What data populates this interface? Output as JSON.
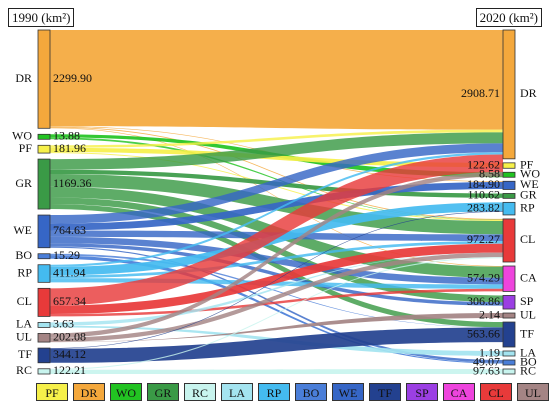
{
  "years": {
    "left": "1990 (km²)",
    "right": "2020 (km²)"
  },
  "legend": [
    {
      "code": "PF",
      "color": "#f6f04a"
    },
    {
      "code": "DR",
      "color": "#f4a83c"
    },
    {
      "code": "WO",
      "color": "#22c322"
    },
    {
      "code": "GR",
      "color": "#3a9a46"
    },
    {
      "code": "RC",
      "color": "#c8f4ee"
    },
    {
      "code": "LA",
      "color": "#a4e4f0"
    },
    {
      "code": "RP",
      "color": "#44bbf0"
    },
    {
      "code": "BO",
      "color": "#4a7ed8"
    },
    {
      "code": "WE",
      "color": "#3666c6"
    },
    {
      "code": "TF",
      "color": "#23418f"
    },
    {
      "code": "SP",
      "color": "#9b3fe3"
    },
    {
      "code": "CA",
      "color": "#ee44dd"
    },
    {
      "code": "CL",
      "color": "#e83a3a"
    },
    {
      "code": "UL",
      "color": "#a48484"
    }
  ],
  "left_nodes": [
    {
      "code": "DR",
      "value": "2299.90",
      "color": "#f4a83c"
    },
    {
      "code": "WO",
      "value": "13.88",
      "color": "#22c322"
    },
    {
      "code": "PF",
      "value": "181.96",
      "color": "#f6f04a"
    },
    {
      "code": "GR",
      "value": "1169.36",
      "color": "#3a9a46"
    },
    {
      "code": "WE",
      "value": "764.63",
      "color": "#3666c6"
    },
    {
      "code": "BO",
      "value": "15.29",
      "color": "#4a7ed8"
    },
    {
      "code": "RP",
      "value": "411.94",
      "color": "#44bbf0"
    },
    {
      "code": "CL",
      "value": "657.34",
      "color": "#e83a3a"
    },
    {
      "code": "LA",
      "value": "3.63",
      "color": "#a4e4f0"
    },
    {
      "code": "UL",
      "value": "202.08",
      "color": "#a48484"
    },
    {
      "code": "TF",
      "value": "344.12",
      "color": "#23418f"
    },
    {
      "code": "RC",
      "value": "122.21",
      "color": "#c8f4ee"
    }
  ],
  "right_nodes": [
    {
      "code": "DR",
      "value": "2908.71",
      "color": "#f4a83c"
    },
    {
      "code": "PF",
      "value": "122.62",
      "color": "#f6f04a"
    },
    {
      "code": "WO",
      "value": "8.58",
      "color": "#22c322"
    },
    {
      "code": "WE",
      "value": "184.90",
      "color": "#3666c6"
    },
    {
      "code": "GR",
      "value": "110.62",
      "color": "#3a9a46"
    },
    {
      "code": "RP",
      "value": "283.82",
      "color": "#44bbf0"
    },
    {
      "code": "CL",
      "value": "972.27",
      "color": "#e83a3a"
    },
    {
      "code": "CA",
      "value": "574.29",
      "color": "#ee44dd"
    },
    {
      "code": "SP",
      "value": "306.86",
      "color": "#9b3fe3"
    },
    {
      "code": "UL",
      "value": "2.14",
      "color": "#a48484"
    },
    {
      "code": "TF",
      "value": "563.66",
      "color": "#23418f"
    },
    {
      "code": "LA",
      "value": "1.19",
      "color": "#a4e4f0"
    },
    {
      "code": "BO",
      "value": "49.07",
      "color": "#4a7ed8"
    },
    {
      "code": "RC",
      "value": "97.63",
      "color": "#c8f4ee"
    }
  ],
  "flows": [
    {
      "from": "DR",
      "to": "DR",
      "value": 2250
    },
    {
      "from": "DR",
      "to": "CL",
      "value": 20
    },
    {
      "from": "DR",
      "to": "WE",
      "value": 15
    },
    {
      "from": "DR",
      "to": "CA",
      "value": 14.9
    },
    {
      "from": "WO",
      "to": "WO",
      "value": 8.58
    },
    {
      "from": "WO",
      "to": "CL",
      "value": 5.3
    },
    {
      "from": "PF",
      "to": "DR",
      "value": 60
    },
    {
      "from": "PF",
      "to": "PF",
      "value": 100
    },
    {
      "from": "PF",
      "to": "CL",
      "value": 21.96
    },
    {
      "from": "GR",
      "to": "DR",
      "value": 250
    },
    {
      "from": "GR",
      "to": "GR",
      "value": 100
    },
    {
      "from": "GR",
      "to": "CL",
      "value": 300
    },
    {
      "from": "GR",
      "to": "CA",
      "value": 250
    },
    {
      "from": "GR",
      "to": "SP",
      "value": 150
    },
    {
      "from": "GR",
      "to": "TF",
      "value": 119.36
    },
    {
      "from": "WE",
      "to": "DR",
      "value": 200
    },
    {
      "from": "WE",
      "to": "WE",
      "value": 160
    },
    {
      "from": "WE",
      "to": "CL",
      "value": 150
    },
    {
      "from": "WE",
      "to": "CA",
      "value": 150
    },
    {
      "from": "WE",
      "to": "SP",
      "value": 80
    },
    {
      "from": "WE",
      "to": "BO",
      "value": 24.63
    },
    {
      "from": "BO",
      "to": "BO",
      "value": 10
    },
    {
      "from": "BO",
      "to": "TF",
      "value": 5.29
    },
    {
      "from": "RP",
      "to": "RP",
      "value": 200
    },
    {
      "from": "RP",
      "to": "CA",
      "value": 100
    },
    {
      "from": "RP",
      "to": "DR",
      "value": 50
    },
    {
      "from": "RP",
      "to": "CL",
      "value": 61.94
    },
    {
      "from": "CL",
      "to": "DR",
      "value": 400
    },
    {
      "from": "CL",
      "to": "CL",
      "value": 200
    },
    {
      "from": "CL",
      "to": "CA",
      "value": 57.34
    },
    {
      "from": "LA",
      "to": "LA",
      "value": 1.19
    },
    {
      "from": "LA",
      "to": "CL",
      "value": 2.44
    },
    {
      "from": "UL",
      "to": "UL",
      "value": 2.14
    },
    {
      "from": "UL",
      "to": "DR",
      "value": 100
    },
    {
      "from": "UL",
      "to": "CL",
      "value": 99.94
    },
    {
      "from": "TF",
      "to": "TF",
      "value": 330
    },
    {
      "from": "TF",
      "to": "RP",
      "value": 14.12
    },
    {
      "from": "RC",
      "to": "RC",
      "value": 97.63
    },
    {
      "from": "RC",
      "to": "CL",
      "value": 24.58
    }
  ]
}
